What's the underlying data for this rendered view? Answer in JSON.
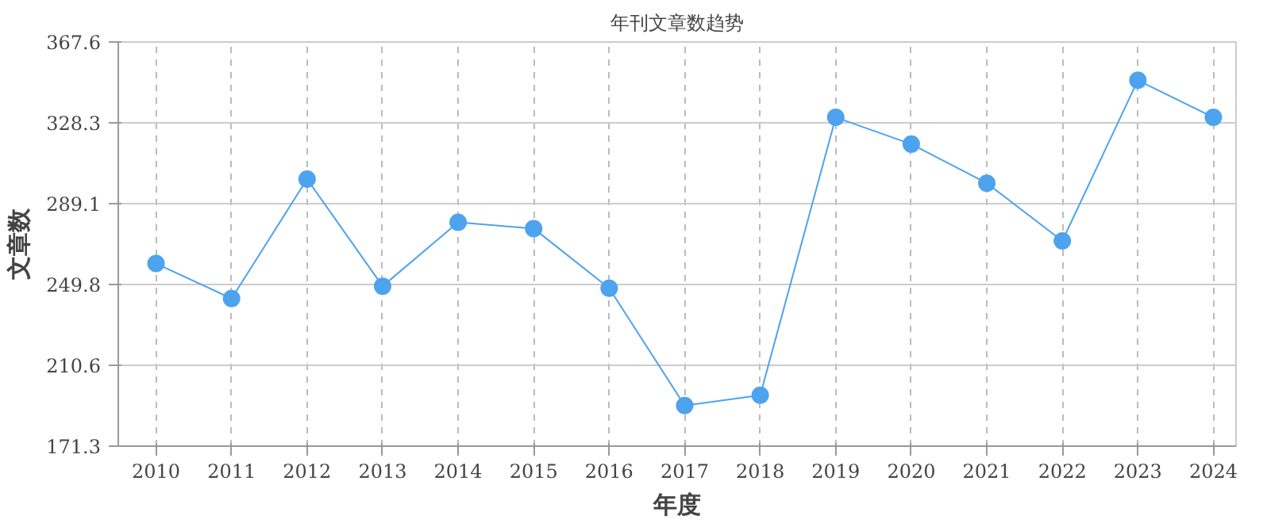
{
  "chart_data": {
    "type": "line",
    "title": "年刊文章数趋势",
    "xlabel": "年度",
    "ylabel": "文章数",
    "categories": [
      "2010",
      "2011",
      "2012",
      "2013",
      "2014",
      "2015",
      "2016",
      "2017",
      "2018",
      "2019",
      "2020",
      "2021",
      "2022",
      "2023",
      "2024"
    ],
    "series": [
      {
        "color": "#4da3ee",
        "values": [
          260,
          243,
          301,
          249,
          280,
          277,
          248,
          191,
          196,
          331,
          318,
          299,
          271,
          349,
          331
        ]
      }
    ],
    "ylim": [
      171.3,
      367.6
    ],
    "yticks": [
      171.3,
      210.6,
      249.8,
      289.1,
      328.3,
      367.6
    ],
    "grid": true,
    "marker": "circle",
    "line_style": "solid"
  }
}
